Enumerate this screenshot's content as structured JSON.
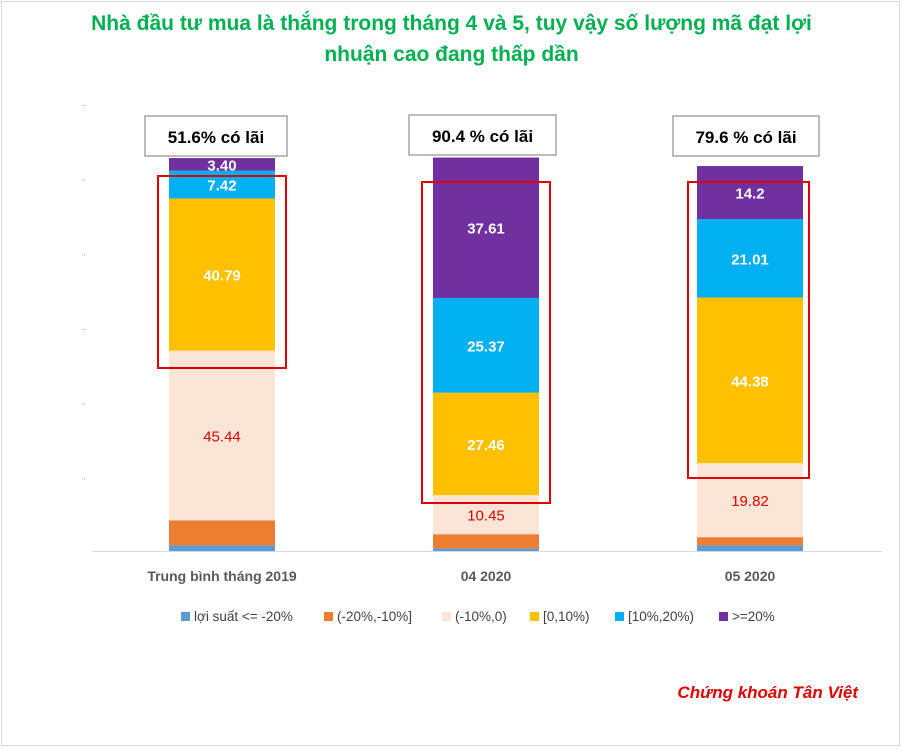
{
  "title_line1": "Nhà đầu tư mua là thắng trong tháng 4 và 5, tuy vậy số lượng mã đạt lợi",
  "title_line2": "nhuận cao đang thấp dần",
  "source": "Chứng khoán Tân Việt",
  "annotations": [
    "51.6% có lãi",
    "90.4 % có lãi",
    "79.6 % có lãi"
  ],
  "colors": {
    "title": "#00b050",
    "source": "#e00000",
    "highlight_box": "#e00000"
  },
  "chart_data": {
    "type": "bar",
    "stacked": true,
    "categories": [
      "Trung bình tháng  2019",
      "04 2020",
      "05 2020"
    ],
    "series": [
      {
        "name": "lợi suất <= -20%",
        "color": "#5b9bd5",
        "values": [
          1.5,
          0.7,
          1.5
        ],
        "labels": [
          "",
          "",
          ""
        ],
        "label_color": "#ffffff"
      },
      {
        "name": "(-20%,-10%]",
        "color": "#ed7d31",
        "values": [
          6.7,
          3.8,
          2.2
        ],
        "labels": [
          "",
          "",
          ""
        ],
        "label_color": "#ffffff"
      },
      {
        "name": "(-10%,0)",
        "color": "#fbe5d6",
        "values": [
          45.44,
          10.45,
          19.82
        ],
        "labels": [
          "45.44",
          "10.45",
          "19.82"
        ],
        "label_color": "#e00000"
      },
      {
        "name": "[0,10%)",
        "color": "#ffc000",
        "values": [
          40.79,
          27.46,
          44.38
        ],
        "labels": [
          "40.79",
          "27.46",
          "44.38"
        ],
        "label_color": "#ffffff"
      },
      {
        "name": "[10%,20%)",
        "color": "#00b0f0",
        "values": [
          7.42,
          25.37,
          21.01
        ],
        "labels": [
          "7.42",
          "25.37",
          "21.01"
        ],
        "label_color": "#ffffff"
      },
      {
        "name": ">=20%",
        "color": "#7030a0",
        "values": [
          3.4,
          37.61,
          14.2
        ],
        "labels": [
          "3.40",
          "37.61",
          "14.2"
        ],
        "label_color": "#ffffff"
      }
    ],
    "ylim": [
      0,
      120
    ],
    "grid": false,
    "legend": "bottom"
  }
}
